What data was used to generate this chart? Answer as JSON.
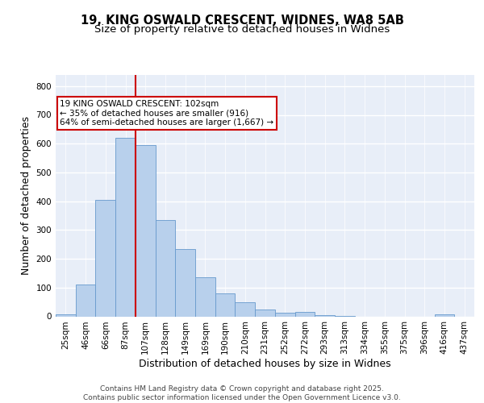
{
  "title_line1": "19, KING OSWALD CRESCENT, WIDNES, WA8 5AB",
  "title_line2": "Size of property relative to detached houses in Widnes",
  "xlabel": "Distribution of detached houses by size in Widnes",
  "ylabel": "Number of detached properties",
  "categories": [
    "25sqm",
    "46sqm",
    "66sqm",
    "87sqm",
    "107sqm",
    "128sqm",
    "149sqm",
    "169sqm",
    "190sqm",
    "210sqm",
    "231sqm",
    "252sqm",
    "272sqm",
    "293sqm",
    "313sqm",
    "334sqm",
    "355sqm",
    "375sqm",
    "396sqm",
    "416sqm",
    "437sqm"
  ],
  "values": [
    8,
    110,
    405,
    620,
    595,
    335,
    235,
    135,
    80,
    50,
    25,
    13,
    15,
    3,
    1,
    0,
    0,
    0,
    0,
    8,
    0
  ],
  "bar_color": "#b8d0ec",
  "bar_edge_color": "#6699cc",
  "background_color": "#e8eef8",
  "grid_color": "#ffffff",
  "vline_x_index": 4,
  "vline_color": "#cc0000",
  "annotation_text": "19 KING OSWALD CRESCENT: 102sqm\n← 35% of detached houses are smaller (916)\n64% of semi-detached houses are larger (1,667) →",
  "annotation_box_color": "#ffffff",
  "annotation_box_edge_color": "#cc0000",
  "ylim": [
    0,
    840
  ],
  "yticks": [
    0,
    100,
    200,
    300,
    400,
    500,
    600,
    700,
    800
  ],
  "footer_text": "Contains HM Land Registry data © Crown copyright and database right 2025.\nContains public sector information licensed under the Open Government Licence v3.0.",
  "title_fontsize": 10.5,
  "subtitle_fontsize": 9.5,
  "axis_label_fontsize": 9,
  "tick_fontsize": 7.5,
  "annotation_fontsize": 7.5,
  "footer_fontsize": 6.5
}
